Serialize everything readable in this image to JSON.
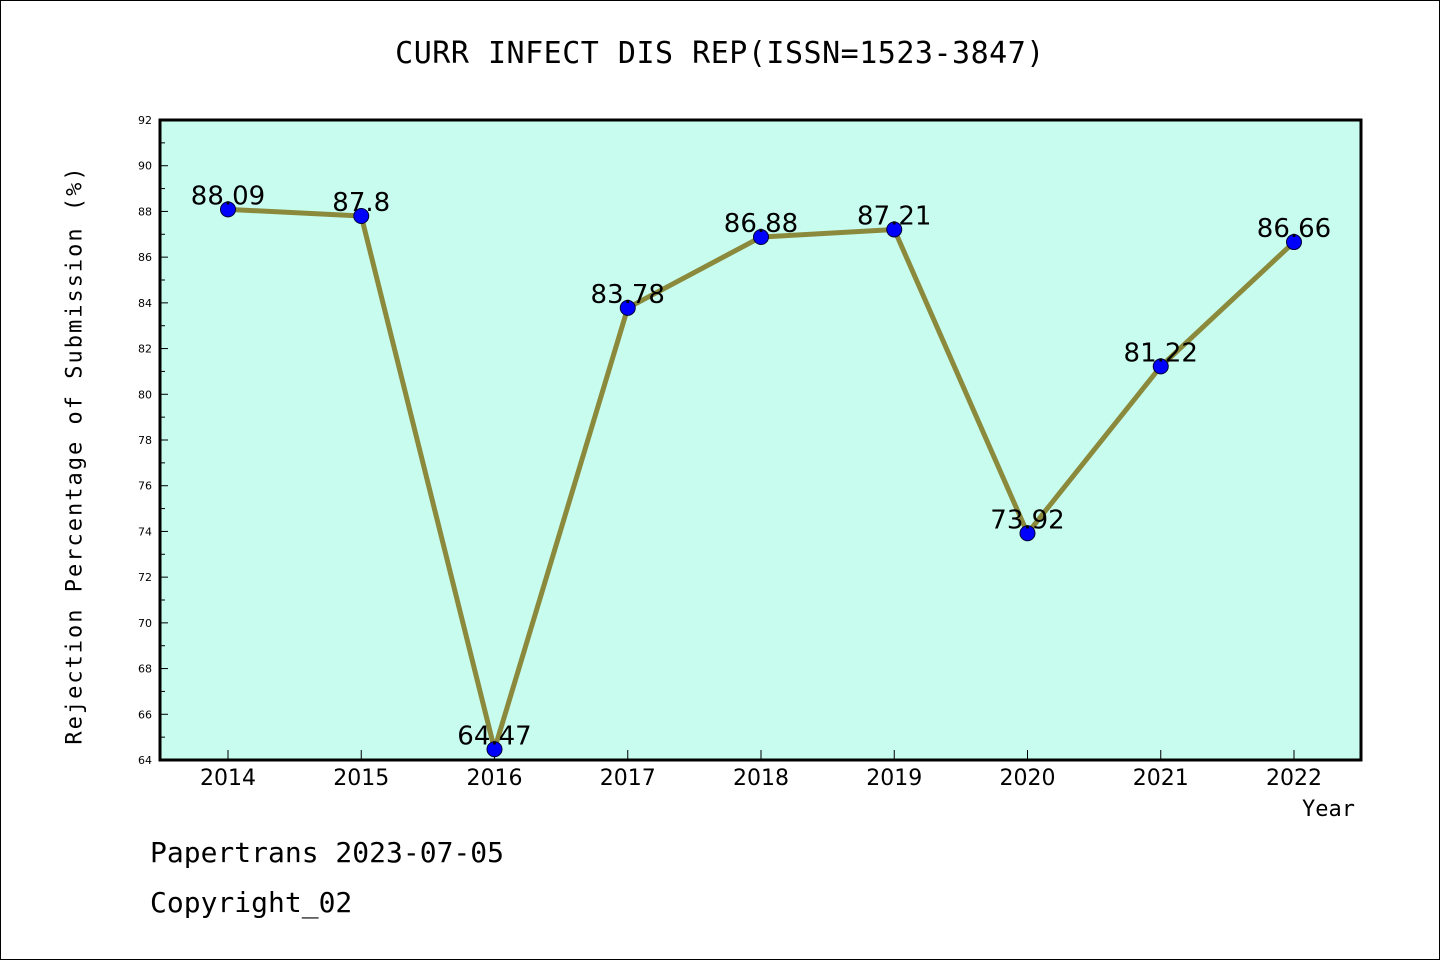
{
  "chart_data": {
    "type": "line",
    "title": "CURR INFECT DIS REP(ISSN=1523-3847)",
    "xlabel": "Year",
    "ylabel": "Rejection Percentage of Submission (%)",
    "categories": [
      "2014",
      "2015",
      "2016",
      "2017",
      "2018",
      "2019",
      "2020",
      "2021",
      "2022"
    ],
    "series": [
      {
        "values": [
          88.09,
          87.8,
          64.47,
          83.78,
          86.88,
          87.21,
          73.92,
          81.22,
          86.66
        ],
        "labels": [
          "88.09",
          "87.8",
          "64.47",
          "83.78",
          "86.88",
          "87.21",
          "73.92",
          "81.22",
          "86.66"
        ]
      }
    ],
    "ylim": [
      64,
      92
    ],
    "yticks": [
      "64",
      "66",
      "68",
      "70",
      "72",
      "74",
      "76",
      "78",
      "80",
      "82",
      "84",
      "86",
      "88",
      "90",
      "92"
    ],
    "grid": false,
    "colors": {
      "plot_background": "#c8fcee",
      "line": "#8b8a3c",
      "marker": "#0000ff"
    }
  },
  "footer": {
    "line1": "Papertrans 2023-07-05",
    "line2": "Copyright_02"
  }
}
